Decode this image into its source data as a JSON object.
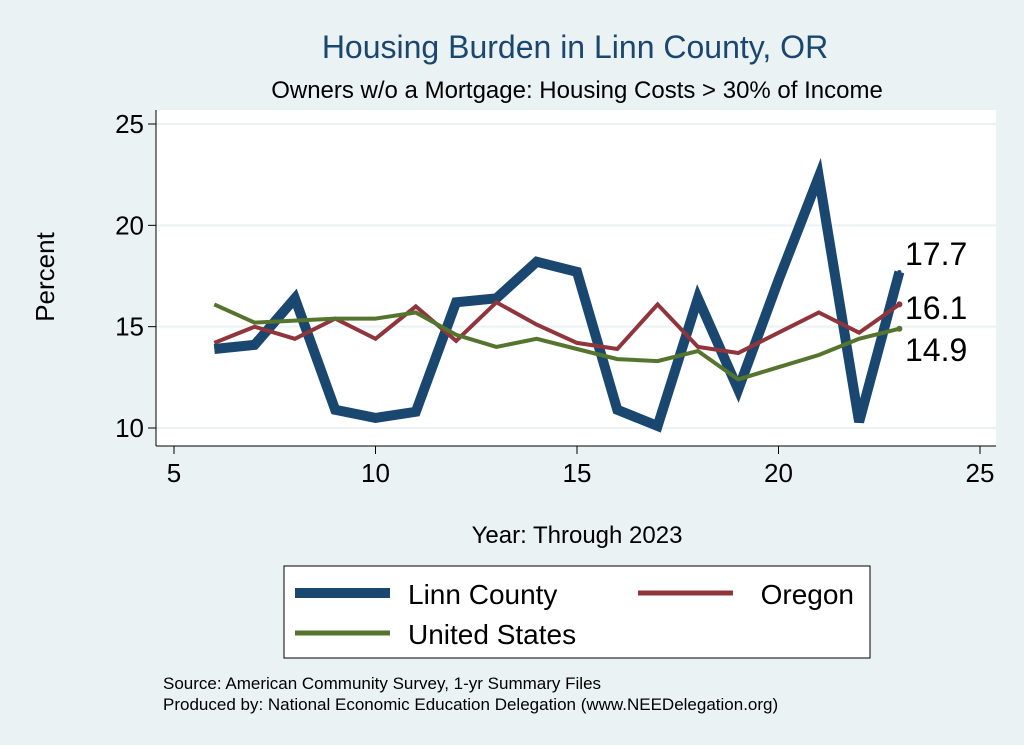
{
  "chart_data": {
    "type": "line",
    "title": "Housing Burden in Linn County, OR",
    "subtitle": "Owners w/o a Mortgage: Housing Costs > 30% of Income",
    "xlabel": "Year: Through 2023",
    "ylabel": "Percent",
    "xlim": [
      5,
      25
    ],
    "ylim": [
      10,
      25
    ],
    "xticks": [
      "5",
      "10",
      "15",
      "20",
      "25"
    ],
    "yticks": [
      "10",
      "15",
      "20",
      "25"
    ],
    "grid": true,
    "legend_position": "bottom",
    "x": [
      6,
      7,
      8,
      9,
      10,
      11,
      12,
      13,
      14,
      15,
      16,
      17,
      18,
      19,
      20,
      21,
      22,
      23
    ],
    "series": [
      {
        "name": "Linn County",
        "color": "#1a476f",
        "values": [
          13.9,
          14.1,
          16.4,
          10.9,
          10.5,
          10.8,
          16.2,
          16.4,
          18.2,
          17.7,
          10.9,
          10.1,
          16.4,
          11.9,
          17.3,
          22.4,
          10.3,
          17.7
        ],
        "end_label": "17.7"
      },
      {
        "name": "Oregon",
        "color": "#90353b",
        "values": [
          14.2,
          15.0,
          14.4,
          15.4,
          14.4,
          16.0,
          14.3,
          16.2,
          15.1,
          14.2,
          13.9,
          16.1,
          14.0,
          13.7,
          14.7,
          15.7,
          14.7,
          16.1
        ],
        "end_label": "16.1"
      },
      {
        "name": "United States",
        "color": "#55752f",
        "values": [
          16.1,
          15.2,
          15.3,
          15.4,
          15.4,
          15.7,
          14.6,
          14.0,
          14.4,
          13.9,
          13.4,
          13.3,
          13.8,
          12.4,
          13.0,
          13.6,
          14.4,
          14.9
        ],
        "end_label": "14.9"
      }
    ],
    "source_line": "Source: American Community Survey, 1-yr Summary Files",
    "produced_line": "Produced by: National Economic Education Delegation (www.NEEDelegation.org)"
  }
}
